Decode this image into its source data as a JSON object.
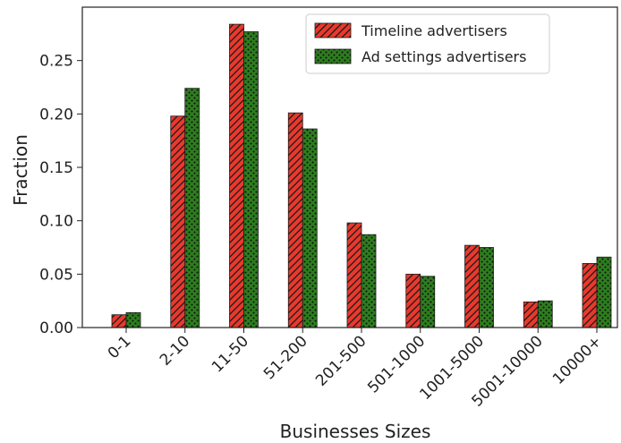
{
  "chart_data": {
    "type": "bar",
    "xlabel": "Businesses Sizes",
    "ylabel": "Fraction",
    "categories": [
      "0-1",
      "2-10",
      "11-50",
      "51-200",
      "201-500",
      "501-1000",
      "1001-5000",
      "5001-10000",
      "10000+"
    ],
    "series": [
      {
        "name": "Timeline advertisers",
        "values": [
          0.012,
          0.198,
          0.284,
          0.201,
          0.098,
          0.05,
          0.077,
          0.024,
          0.06
        ],
        "color": "#e8392d",
        "pattern": "diagonal-hatch"
      },
      {
        "name": "Ad settings advertisers",
        "values": [
          0.014,
          0.224,
          0.277,
          0.186,
          0.087,
          0.048,
          0.075,
          0.025,
          0.066
        ],
        "color": "#2e7d1f",
        "pattern": "dots"
      }
    ],
    "yticks": [
      "0.00",
      "0.05",
      "0.10",
      "0.15",
      "0.20",
      "0.25"
    ],
    "ylim": [
      0,
      0.3
    ],
    "legend_position": "top-right",
    "grid": false
  }
}
